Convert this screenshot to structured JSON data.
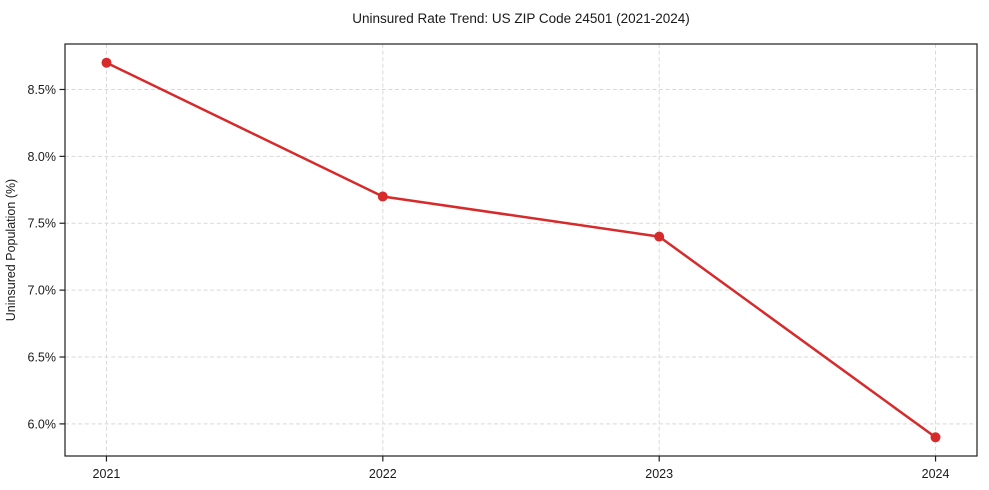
{
  "chart_data": {
    "type": "line",
    "title": "Uninsured Rate Trend: US ZIP Code 24501 (2021-2024)",
    "xlabel": "",
    "ylabel": "Uninsured Population (%)",
    "x": [
      2021,
      2022,
      2023,
      2024
    ],
    "series": [
      {
        "name": "uninsured_rate_pct",
        "values": [
          8.7,
          7.7,
          7.4,
          5.9
        ]
      }
    ],
    "xticks": [
      {
        "value": 2021,
        "label": "2021"
      },
      {
        "value": 2022,
        "label": "2022"
      },
      {
        "value": 2023,
        "label": "2023"
      },
      {
        "value": 2024,
        "label": "2024"
      }
    ],
    "yticks": [
      {
        "value": 6.0,
        "label": "6.0%"
      },
      {
        "value": 6.5,
        "label": "6.5%"
      },
      {
        "value": 7.0,
        "label": "7.0%"
      },
      {
        "value": 7.5,
        "label": "7.5%"
      },
      {
        "value": 8.0,
        "label": "8.0%"
      },
      {
        "value": 8.5,
        "label": "8.5%"
      }
    ],
    "xlim": [
      2020.85,
      2024.15
    ],
    "ylim": [
      5.76,
      8.84
    ],
    "grid": true,
    "grid_style": "dashed",
    "legend": "none",
    "colors": {
      "line": "#d62a2b",
      "marker": "#d62a2b",
      "grid": "#d9d9d9",
      "axis": "#1f1f1f",
      "text": "#1a1a1a",
      "background": "#ffffff"
    }
  }
}
